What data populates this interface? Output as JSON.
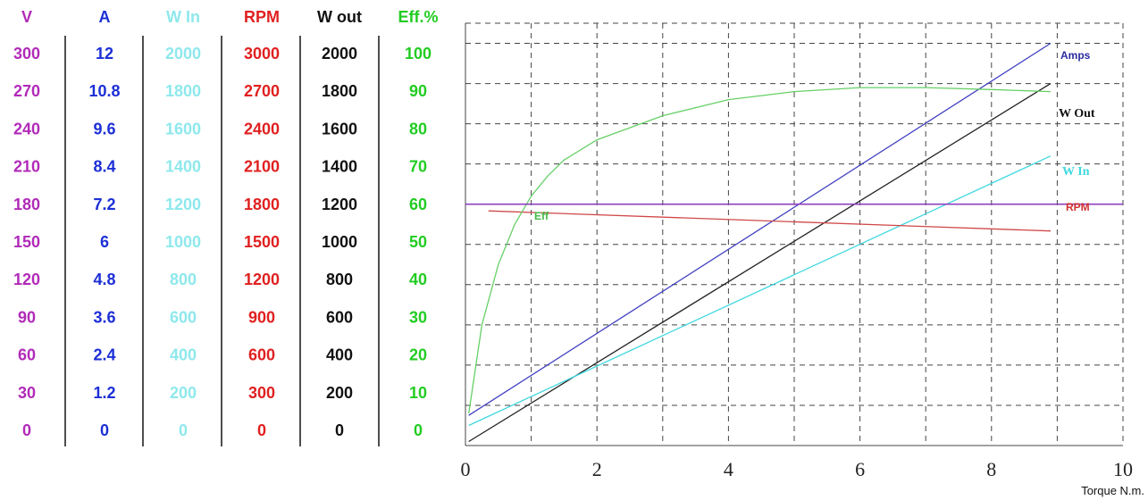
{
  "chart_data": {
    "type": "line",
    "xlabel": "Torque N.m.",
    "xlim": [
      0,
      10
    ],
    "x_ticks": [
      "0",
      "2",
      "4",
      "6",
      "8",
      "10"
    ],
    "grid": true,
    "columns": [
      {
        "header": "V",
        "color": "#b12ab8",
        "values": [
          "300",
          "270",
          "240",
          "210",
          "180",
          "150",
          "120",
          "90",
          "60",
          "30",
          "0"
        ]
      },
      {
        "header": "A",
        "color": "#1c2fd6",
        "values": [
          "12",
          "10.8",
          "9.6",
          "8.4",
          "7.2",
          "6",
          "4.8",
          "3.6",
          "2.4",
          "1.2",
          "0"
        ]
      },
      {
        "header": "W In",
        "color": "#8ee8ec",
        "values": [
          "2000",
          "1800",
          "1600",
          "1400",
          "1200",
          "1000",
          "800",
          "600",
          "400",
          "200",
          "0"
        ]
      },
      {
        "header": "RPM",
        "color": "#e02020",
        "values": [
          "3000",
          "2700",
          "2400",
          "2100",
          "1800",
          "1500",
          "1200",
          "900",
          "600",
          "300",
          "0"
        ]
      },
      {
        "header": "W out",
        "color": "#111111",
        "values": [
          "2000",
          "1800",
          "1600",
          "1400",
          "1200",
          "1000",
          "800",
          "600",
          "400",
          "200",
          "0"
        ]
      },
      {
        "header": "Eff.%",
        "color": "#22cc22",
        "values": [
          "100",
          "90",
          "80",
          "70",
          "60",
          "50",
          "40",
          "30",
          "20",
          "10",
          "0"
        ]
      }
    ],
    "series": [
      {
        "name": "Amps",
        "color": "#4040c0",
        "unit_max": 12,
        "x": [
          0.05,
          8.9
        ],
        "y": [
          0.9,
          12
        ]
      },
      {
        "name": "W Out",
        "color": "#222222",
        "unit_max": 2000,
        "x": [
          0.05,
          8.9
        ],
        "y": [
          20,
          1800
        ]
      },
      {
        "name": "W In",
        "color": "#40d8e0",
        "unit_max": 2000,
        "x": [
          0.05,
          8.9
        ],
        "y": [
          100,
          1440
        ]
      },
      {
        "name": "RPM",
        "color": "#d04848",
        "unit_max": 3000,
        "x": [
          0.35,
          8.9
        ],
        "y": [
          1750,
          1600
        ]
      },
      {
        "name": "Eff",
        "color": "#66d066",
        "unit_max": 100,
        "x": [
          0.05,
          0.25,
          0.5,
          0.75,
          1.0,
          1.25,
          1.5,
          2,
          2.5,
          3,
          4,
          5,
          6,
          7,
          8,
          8.9
        ],
        "y": [
          8,
          30,
          45,
          55,
          62,
          67,
          71,
          76,
          79,
          82,
          86,
          88,
          89,
          89,
          88.5,
          88
        ]
      },
      {
        "name": "",
        "color": "#9040c0",
        "unit_max": 300,
        "x": [
          0,
          10
        ],
        "y": [
          180,
          180
        ]
      }
    ]
  }
}
